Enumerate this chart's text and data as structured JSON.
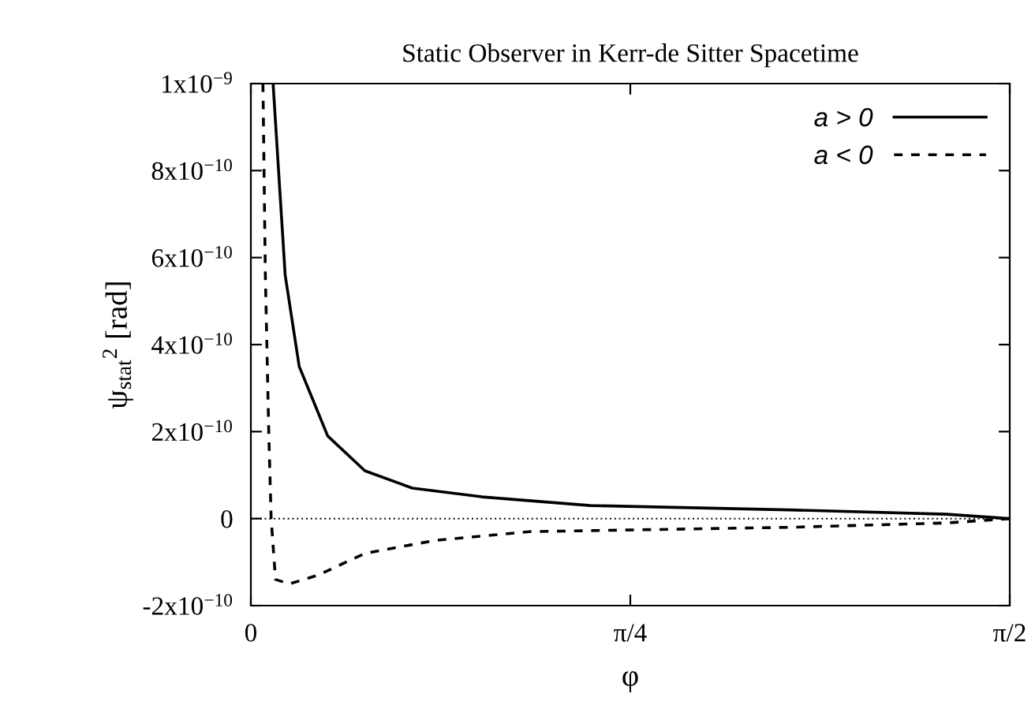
{
  "chart_data": {
    "type": "line",
    "title": "Static Observer in Kerr-de Sitter Spacetime",
    "xlabel": "φ",
    "ylabel": "ψ$_{stat}$$^{2}$ [rad]",
    "xlim": [
      0,
      1.5708
    ],
    "xticks": [
      0,
      {
        "value": 0.7854,
        "label": "π/4"
      },
      {
        "value": 1.5708,
        "label": "π/2"
      }
    ],
    "ylim": [
      -2e-10,
      1e-09
    ],
    "yticks": [
      {
        "value": -2e-10,
        "label": "-2x10$^{−10}$"
      },
      0,
      {
        "value": 2e-10,
        "label": "2x10$^{−10}$"
      },
      {
        "value": 4e-10,
        "label": "4x10$^{−10}$"
      },
      {
        "value": 6e-10,
        "label": "6x10$^{−10}$"
      },
      {
        "value": 8e-10,
        "label": "8x10$^{−10}$"
      },
      {
        "value": 1e-09,
        "label": "1x10$^{−9}$"
      }
    ],
    "grid": false,
    "legend": "top right",
    "ref_lines": [
      {
        "axis": "y",
        "value": 0,
        "line_style": "dotted",
        "color": "#000000"
      }
    ],
    "series": [
      {
        "name": "a > 0",
        "color": "#000000",
        "line_style": "solid",
        "x": [
          0.046,
          0.071,
          0.1,
          0.159,
          0.236,
          0.334,
          0.478,
          0.703,
          1.114,
          1.44,
          1.5708
        ],
        "values": [
          1e-09,
          5.6e-10,
          3.5e-10,
          1.9e-10,
          1.1e-10,
          7e-11,
          5e-11,
          3e-11,
          2e-11,
          1e-11,
          0
        ]
      },
      {
        "name": "a < 0",
        "color": "#000000",
        "line_style": "dashed",
        "x": [
          0.025,
          0.03,
          0.037,
          0.042,
          0.051,
          0.08,
          0.139,
          0.236,
          0.382,
          0.576,
          1.114,
          1.44,
          1.5708
        ],
        "values": [
          1e-09,
          5.6e-10,
          2e-10,
          0,
          -1.4e-10,
          -1.5e-10,
          -1.3e-10,
          -8e-11,
          -5e-11,
          -3e-11,
          -2e-11,
          -1e-11,
          0
        ]
      }
    ]
  }
}
